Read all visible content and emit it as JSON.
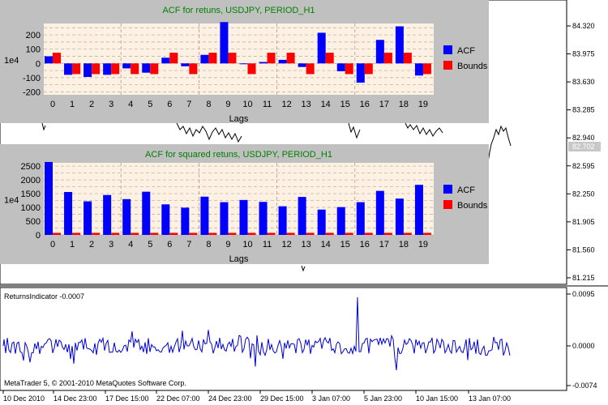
{
  "colors": {
    "chart_bg": "#ffffff",
    "panel_bg": "#c0c0c0",
    "plot_bg": "#fdf1e4",
    "acf": "#0000ff",
    "bounds": "#ff0000",
    "title": "#008000",
    "price_line": "#000000",
    "indicator_line": "#0000cc",
    "price_marker_bg": "#c8c8c8"
  },
  "main_chart": {
    "price_axis_ticks": [
      "84.320",
      "83.975",
      "83.630",
      "83.285",
      "82.940",
      "82.595",
      "82.250",
      "81.905",
      "81.560",
      "81.215"
    ],
    "current_price_marker": "82.702"
  },
  "indicator": {
    "label": "ReturnsIndicator -0.0007",
    "axis_ticks": [
      "0.0095",
      "0.0000",
      "-0.0074"
    ],
    "copyright": "MetaTrader 5, © 2001-2010 MetaQuotes Software Corp."
  },
  "time_axis": {
    "labels": [
      "10 Dec 2010",
      "14 Dec 23:00",
      "17 Dec 15:00",
      "22 Dec 07:00",
      "24 Dec 23:00",
      "29 Dec 15:00",
      "3 Jan 07:00",
      "5 Jan 23:00",
      "10 Jan 15:00",
      "13 Jan 07:00"
    ]
  },
  "chart_data": [
    {
      "type": "bar",
      "title": "ACF for retuns, USDJPY, PERIOD_H1",
      "xlabel": "Lags",
      "ylabel": "1e4",
      "categories": [
        "0",
        "1",
        "2",
        "3",
        "4",
        "5",
        "6",
        "7",
        "8",
        "9",
        "10",
        "11",
        "12",
        "13",
        "14",
        "15",
        "16",
        "17",
        "18",
        "19"
      ],
      "series": [
        {
          "name": "ACF",
          "values": [
            50,
            -80,
            -95,
            -80,
            -35,
            -65,
            40,
            -20,
            60,
            290,
            0,
            10,
            25,
            -25,
            215,
            -55,
            -135,
            165,
            260,
            -85
          ]
        },
        {
          "name": "Bounds",
          "values": [
            75,
            -75,
            -75,
            -75,
            -75,
            -75,
            75,
            -75,
            75,
            75,
            -75,
            75,
            75,
            -75,
            75,
            -75,
            -75,
            75,
            75,
            -75
          ]
        }
      ],
      "yticks": [
        -200,
        -100,
        0,
        100,
        200
      ],
      "ylim": [
        -220,
        280
      ],
      "legend": "right",
      "grid": true
    },
    {
      "type": "bar",
      "title": "ACF for squared retuns, USDJPY, PERIOD_H1",
      "xlabel": "Lags",
      "ylabel": "1e4",
      "categories": [
        "0",
        "1",
        "2",
        "3",
        "4",
        "5",
        "6",
        "7",
        "8",
        "9",
        "10",
        "11",
        "12",
        "13",
        "14",
        "15",
        "16",
        "17",
        "18",
        "19"
      ],
      "series": [
        {
          "name": "ACF",
          "values": [
            2650,
            1560,
            1220,
            1450,
            1300,
            1570,
            1110,
            990,
            1390,
            1190,
            1270,
            1200,
            1040,
            1380,
            920,
            1010,
            1190,
            1600,
            1320,
            1820
          ]
        },
        {
          "name": "Bounds",
          "values": [
            75,
            75,
            75,
            75,
            75,
            75,
            75,
            75,
            75,
            75,
            75,
            75,
            75,
            75,
            75,
            75,
            75,
            75,
            75,
            75
          ]
        }
      ],
      "yticks": [
        0,
        500,
        1000,
        1500,
        2000,
        2500
      ],
      "ylim": [
        0,
        2620
      ],
      "legend": "right",
      "grid": true
    }
  ]
}
